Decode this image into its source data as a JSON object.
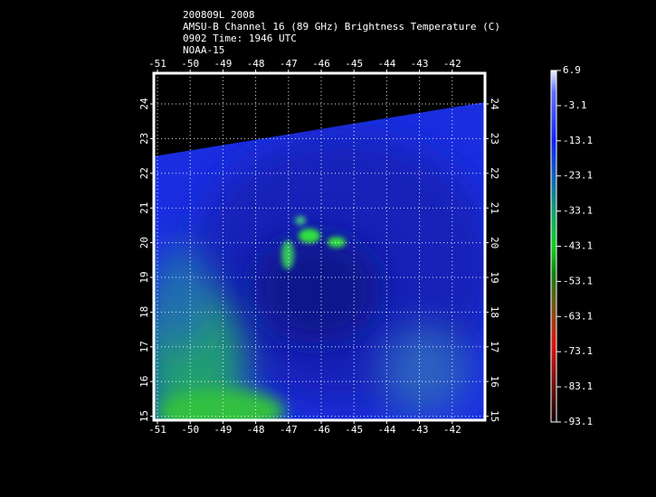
{
  "header": {
    "lines": [
      "200809L 2008",
      "AMSU-B Channel 16 (89 GHz) Brightness Temperature (C)",
      "0902 Time: 1946 UTC",
      "NOAA-15"
    ]
  },
  "map": {
    "lon_ticks": [
      -51,
      -50,
      -49,
      -48,
      -47,
      -46,
      -45,
      -44,
      -43,
      -42
    ],
    "lat_ticks": [
      24,
      23,
      22,
      21,
      20,
      19,
      18,
      17,
      16,
      15
    ]
  },
  "colorbar": {
    "ticks": [
      6.9,
      -3.1,
      -13.1,
      -23.1,
      -33.1,
      -43.1,
      -53.1,
      -63.1,
      -73.1,
      -83.1,
      -93.1
    ]
  }
}
